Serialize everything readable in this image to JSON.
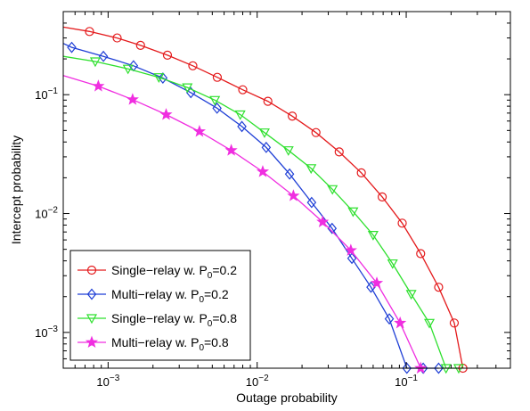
{
  "chart_data": {
    "type": "line",
    "xlabel": "Outage probability",
    "ylabel": "Intercept probability",
    "xscale": "log",
    "yscale": "log",
    "xlim": [
      0.0005,
      0.5
    ],
    "ylim": [
      0.0005,
      0.5
    ],
    "x_ticks": [
      {
        "value": 0.001,
        "base": "10",
        "exp": "−3"
      },
      {
        "value": 0.01,
        "base": "10",
        "exp": "−2"
      },
      {
        "value": 0.1,
        "base": "10",
        "exp": "−1"
      }
    ],
    "y_ticks": [
      {
        "value": 0.001,
        "base": "10",
        "exp": "−3"
      },
      {
        "value": 0.01,
        "base": "10",
        "exp": "−2"
      },
      {
        "value": 0.1,
        "base": "10",
        "exp": "−1"
      }
    ],
    "grid": false,
    "legend_position": "bottom-left",
    "series": [
      {
        "name_prefix": "Single−relay w. P",
        "name_sub": "0",
        "name_suffix": "=0.2",
        "color": "#e41a1c",
        "marker": "circle",
        "x": [
          0.0005,
          0.00075,
          0.00115,
          0.00165,
          0.0025,
          0.0037,
          0.0054,
          0.008,
          0.0118,
          0.0172,
          0.0248,
          0.0355,
          0.05,
          0.069,
          0.094,
          0.125,
          0.165,
          0.21,
          0.24
        ],
        "y": [
          0.37,
          0.34,
          0.3,
          0.26,
          0.215,
          0.175,
          0.14,
          0.11,
          0.088,
          0.066,
          0.048,
          0.033,
          0.022,
          0.0138,
          0.0083,
          0.0046,
          0.0024,
          0.0012,
          0.0005
        ]
      },
      {
        "name_prefix": "Multi−relay w. P",
        "name_sub": "0",
        "name_suffix": "=0.2",
        "color": "#1f3fd6",
        "marker": "diamond",
        "x": [
          0.0005,
          0.00057,
          0.00093,
          0.00148,
          0.00233,
          0.00359,
          0.00538,
          0.0079,
          0.0115,
          0.0165,
          0.0232,
          0.0318,
          0.0432,
          0.058,
          0.077,
          0.101,
          0.13,
          0.165
        ],
        "y": [
          0.27,
          0.25,
          0.21,
          0.175,
          0.138,
          0.104,
          0.077,
          0.054,
          0.036,
          0.0215,
          0.0124,
          0.0075,
          0.0042,
          0.0024,
          0.0013,
          0.0005,
          0.0005,
          0.0005
        ]
      },
      {
        "name_prefix": "Single−relay w. P",
        "name_sub": "0",
        "name_suffix": "=0.8",
        "color": "#2fe02f",
        "marker": "triangle-down",
        "x": [
          0.0005,
          0.00082,
          0.00136,
          0.00219,
          0.0034,
          0.0052,
          0.0077,
          0.0112,
          0.0162,
          0.023,
          0.032,
          0.044,
          0.06,
          0.081,
          0.108,
          0.143,
          0.185,
          0.225
        ],
        "y": [
          0.21,
          0.19,
          0.165,
          0.14,
          0.115,
          0.09,
          0.068,
          0.048,
          0.034,
          0.024,
          0.016,
          0.0104,
          0.0066,
          0.0038,
          0.0021,
          0.0012,
          0.0005,
          0.0005
        ]
      },
      {
        "name_prefix": "Multi−relay w. P",
        "name_sub": "0",
        "name_suffix": "=0.8",
        "color": "#f02ee0",
        "marker": "star",
        "x": [
          0.0005,
          0.00086,
          0.00146,
          0.00245,
          0.0041,
          0.0067,
          0.0109,
          0.0175,
          0.0275,
          0.0425,
          0.0635,
          0.091,
          0.125
        ],
        "y": [
          0.145,
          0.118,
          0.091,
          0.068,
          0.049,
          0.034,
          0.0225,
          0.0141,
          0.0085,
          0.0049,
          0.0026,
          0.0012,
          0.0005
        ]
      }
    ]
  }
}
